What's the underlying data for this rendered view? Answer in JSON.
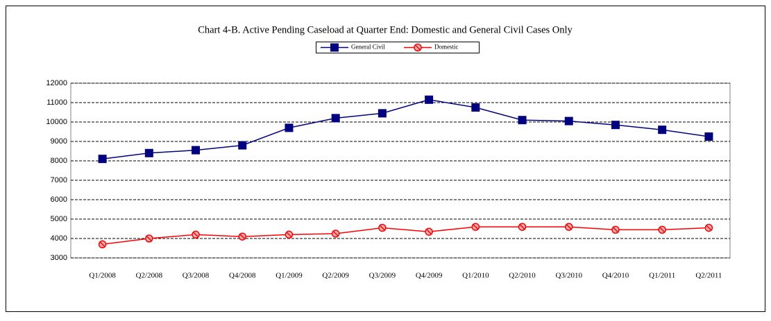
{
  "chart_data": {
    "type": "line",
    "title": "Chart 4-B. Active Pending Caseload at Quarter End: Domestic and General Civil Cases Only",
    "categories": [
      "Q1/2008",
      "Q2/2008",
      "Q3/2008",
      "Q4/2008",
      "Q1/2009",
      "Q2/2009",
      "Q3/2009",
      "Q4/2009",
      "Q1/2010",
      "Q2/2010",
      "Q3/2010",
      "Q4/2010",
      "Q1/2011",
      "Q2/2011"
    ],
    "series": [
      {
        "name": "General Civil",
        "color": "#000080",
        "values": [
          8100,
          8400,
          8550,
          8800,
          9700,
          10200,
          10450,
          11150,
          10750,
          10100,
          10050,
          9850,
          9600,
          9250
        ]
      },
      {
        "name": "Domestic",
        "color": "#ff0000",
        "values": [
          3700,
          4000,
          4200,
          4100,
          4200,
          4250,
          4550,
          4350,
          4600,
          4600,
          4600,
          4450,
          4450,
          4550
        ]
      }
    ],
    "ylim": [
      3000,
      12000
    ],
    "yticks": [
      3000,
      4000,
      5000,
      6000,
      7000,
      8000,
      9000,
      10000,
      11000,
      12000
    ],
    "grid": true,
    "legend": "top"
  }
}
